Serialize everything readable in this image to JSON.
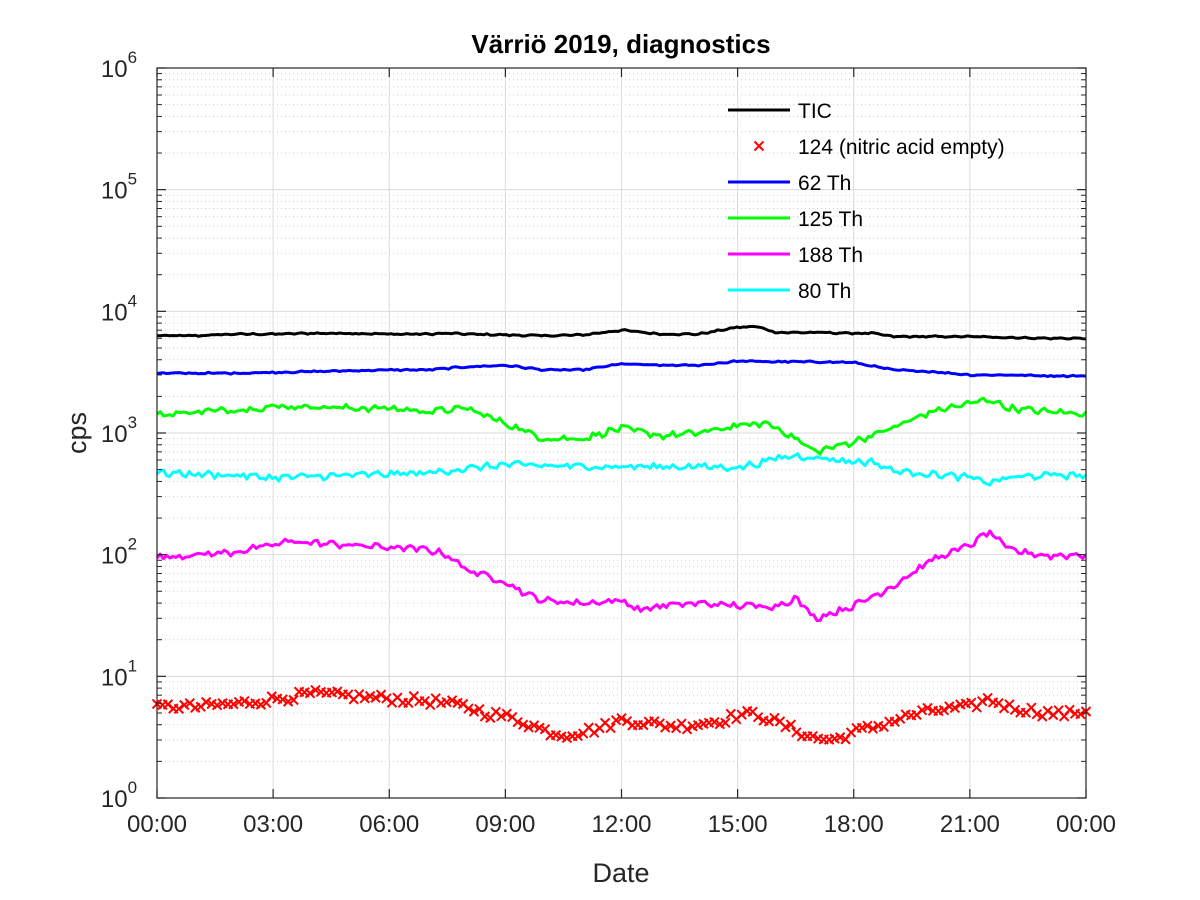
{
  "chart_data": {
    "type": "line",
    "title": "Värriö 2019, diagnostics",
    "xlabel": "Date",
    "ylabel": "cps",
    "yscale": "log",
    "ylim": [
      1,
      1000000
    ],
    "xlim_hours": [
      0,
      24
    ],
    "xticks": [
      "00:00",
      "03:00",
      "06:00",
      "09:00",
      "12:00",
      "15:00",
      "18:00",
      "21:00",
      "00:00"
    ],
    "ytick_exponents": [
      "0",
      "1",
      "2",
      "3",
      "4",
      "5",
      "6"
    ],
    "ytick_base": "10",
    "grid": true,
    "minor_grid": true,
    "legend_position": "top-right",
    "series": [
      {
        "name": "TIC",
        "color": "#000000",
        "style": "line",
        "x": [
          0,
          1,
          2,
          3,
          4,
          5,
          6,
          7,
          7.5,
          8,
          9,
          10,
          11,
          12,
          13,
          14,
          15,
          15.5,
          16,
          17,
          18,
          18.5,
          19,
          20,
          21,
          22,
          23,
          24
        ],
        "y": [
          6300,
          6300,
          6500,
          6500,
          6600,
          6600,
          6500,
          6500,
          6600,
          6500,
          6400,
          6300,
          6400,
          7000,
          6500,
          6500,
          7400,
          7500,
          6700,
          6700,
          6600,
          6600,
          6200,
          6200,
          6200,
          6100,
          6000,
          6000
        ]
      },
      {
        "name": "124 (nitric acid empty)",
        "color": "#ff0000",
        "style": "x",
        "x": [
          0,
          0.5,
          1,
          1.5,
          2,
          2.5,
          3,
          3.5,
          4,
          4.5,
          5,
          5.5,
          6,
          6.5,
          7,
          7.5,
          8,
          8.5,
          9,
          9.5,
          10,
          10.5,
          11,
          11.5,
          12,
          12.5,
          13,
          13.5,
          14,
          14.5,
          15,
          15.5,
          16,
          16.5,
          17,
          17.5,
          18,
          18.5,
          19,
          19.5,
          20,
          20.5,
          21,
          21.5,
          22,
          22.5,
          23,
          23.5,
          24
        ],
        "y": [
          5.5,
          5.7,
          5.6,
          5.8,
          5.9,
          6.2,
          6.5,
          6.8,
          7.2,
          7.0,
          6.9,
          6.7,
          6.6,
          6.4,
          6.3,
          6.0,
          5.6,
          5.0,
          4.7,
          4.2,
          3.6,
          3.3,
          3.5,
          3.8,
          4.4,
          4.2,
          4.0,
          3.9,
          4.1,
          4.3,
          4.8,
          4.9,
          4.2,
          3.6,
          3.1,
          3.0,
          3.5,
          3.8,
          4.3,
          4.8,
          5.2,
          5.4,
          5.6,
          6.5,
          5.6,
          5.3,
          5.0,
          4.9,
          5.2
        ]
      },
      {
        "name": "62 Th",
        "color": "#0000ff",
        "style": "line",
        "x": [
          0,
          1,
          2,
          3,
          4,
          5,
          6,
          7,
          8,
          9,
          10,
          11,
          12,
          13,
          14,
          15,
          16,
          17,
          18,
          19,
          20,
          21,
          22,
          23,
          24
        ],
        "y": [
          3100,
          3100,
          3100,
          3150,
          3200,
          3250,
          3300,
          3300,
          3500,
          3600,
          3300,
          3300,
          3700,
          3600,
          3600,
          3900,
          3850,
          3850,
          3800,
          3300,
          3200,
          3000,
          3000,
          2950,
          2950
        ]
      },
      {
        "name": "125 Th",
        "color": "#00ff00",
        "style": "line",
        "x": [
          0,
          1,
          2,
          3,
          4,
          5,
          6,
          7,
          8,
          9,
          10,
          11,
          12,
          13,
          14,
          15,
          15.8,
          16.5,
          17,
          18,
          19,
          20,
          21,
          21.5,
          22,
          23,
          24
        ],
        "y": [
          1400,
          1500,
          1550,
          1650,
          1650,
          1600,
          1600,
          1500,
          1600,
          1200,
          900,
          900,
          1100,
          950,
          1000,
          1150,
          1200,
          900,
          700,
          850,
          1100,
          1500,
          1750,
          1900,
          1600,
          1500,
          1450
        ]
      },
      {
        "name": "188 Th",
        "color": "#ff00ff",
        "style": "line",
        "x": [
          0,
          1,
          2,
          3,
          3.5,
          4,
          5,
          6,
          7,
          7.5,
          8,
          9,
          9.5,
          10,
          11,
          12,
          12.5,
          13,
          14,
          15,
          16,
          16.5,
          17,
          18,
          19,
          20,
          21,
          21.5,
          22,
          23,
          24
        ],
        "y": [
          95,
          100,
          105,
          120,
          130,
          125,
          120,
          115,
          110,
          100,
          75,
          60,
          48,
          42,
          40,
          42,
          35,
          38,
          40,
          38,
          38,
          44,
          30,
          38,
          55,
          90,
          120,
          155,
          110,
          98,
          100
        ]
      },
      {
        "name": "80 Th",
        "color": "#00ffff",
        "style": "line",
        "x": [
          0,
          1,
          2,
          3,
          4,
          5,
          6,
          7,
          8,
          9,
          10,
          11,
          12,
          13,
          14,
          15,
          15.5,
          16,
          16.5,
          17,
          18,
          18.5,
          19,
          20,
          21,
          21.5,
          22,
          23,
          24
        ],
        "y": [
          470,
          460,
          450,
          430,
          440,
          450,
          460,
          470,
          510,
          550,
          540,
          530,
          530,
          530,
          530,
          520,
          560,
          620,
          650,
          630,
          580,
          580,
          490,
          460,
          430,
          390,
          430,
          450,
          450
        ]
      }
    ]
  }
}
